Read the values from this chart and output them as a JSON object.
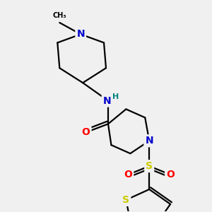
{
  "background_color": "#f0f0f0",
  "atom_colors": {
    "N": "#0000cc",
    "O": "#ff0000",
    "S_sulfonyl": "#cccc00",
    "S_thio": "#cccc00",
    "C": "#000000",
    "NH_color": "#008080"
  },
  "bond_color": "#000000",
  "bond_width": 1.6,
  "figsize": [
    3.0,
    3.0
  ],
  "dpi": 100,
  "xlim": [
    0,
    10
  ],
  "ylim": [
    0,
    10
  ]
}
